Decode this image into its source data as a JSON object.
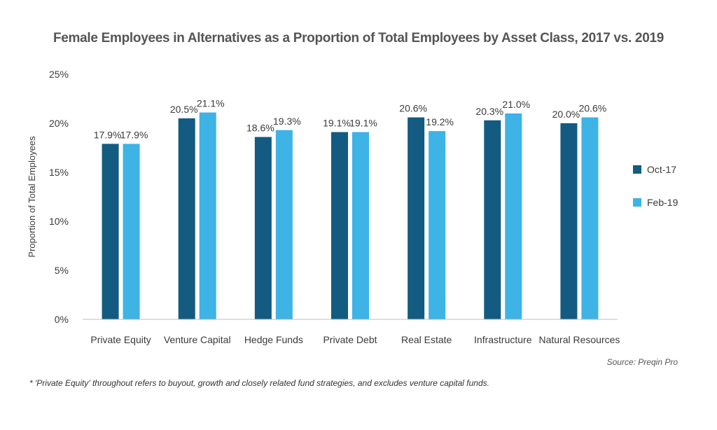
{
  "chart_data": {
    "type": "bar",
    "title": "Female Employees in Alternatives as a Proportion of Total Employees by Asset Class, 2017 vs. 2019",
    "ylabel": "Proportion of Total Employees",
    "xlabel": "",
    "ylim": [
      0,
      25
    ],
    "yticks": [
      "0%",
      "5%",
      "10%",
      "15%",
      "20%",
      "25%"
    ],
    "categories": [
      "Private Equity",
      "Venture Capital",
      "Hedge Funds",
      "Private Debt",
      "Real Estate",
      "Infrastructure",
      "Natural Resources"
    ],
    "series": [
      {
        "name": "Oct-17",
        "color": "#135b80",
        "values": [
          17.9,
          20.5,
          18.6,
          19.1,
          20.6,
          20.3,
          20.0
        ],
        "labels": [
          "17.9%",
          "20.5%",
          "18.6%",
          "19.1%",
          "20.6%",
          "20.3%",
          "20.0%"
        ]
      },
      {
        "name": "Feb-19",
        "color": "#3db3e6",
        "values": [
          17.9,
          21.1,
          19.3,
          19.1,
          19.2,
          21.0,
          20.6
        ],
        "labels": [
          "17.9%",
          "21.1%",
          "19.3%",
          "19.1%",
          "19.2%",
          "21.0%",
          "20.6%"
        ]
      }
    ],
    "legend_position": "right",
    "grid": false
  },
  "source": "Source: Preqin Pro",
  "footnote": "* 'Private Equity' throughout refers to buyout, growth and closely related fund strategies, and excludes venture capital funds."
}
